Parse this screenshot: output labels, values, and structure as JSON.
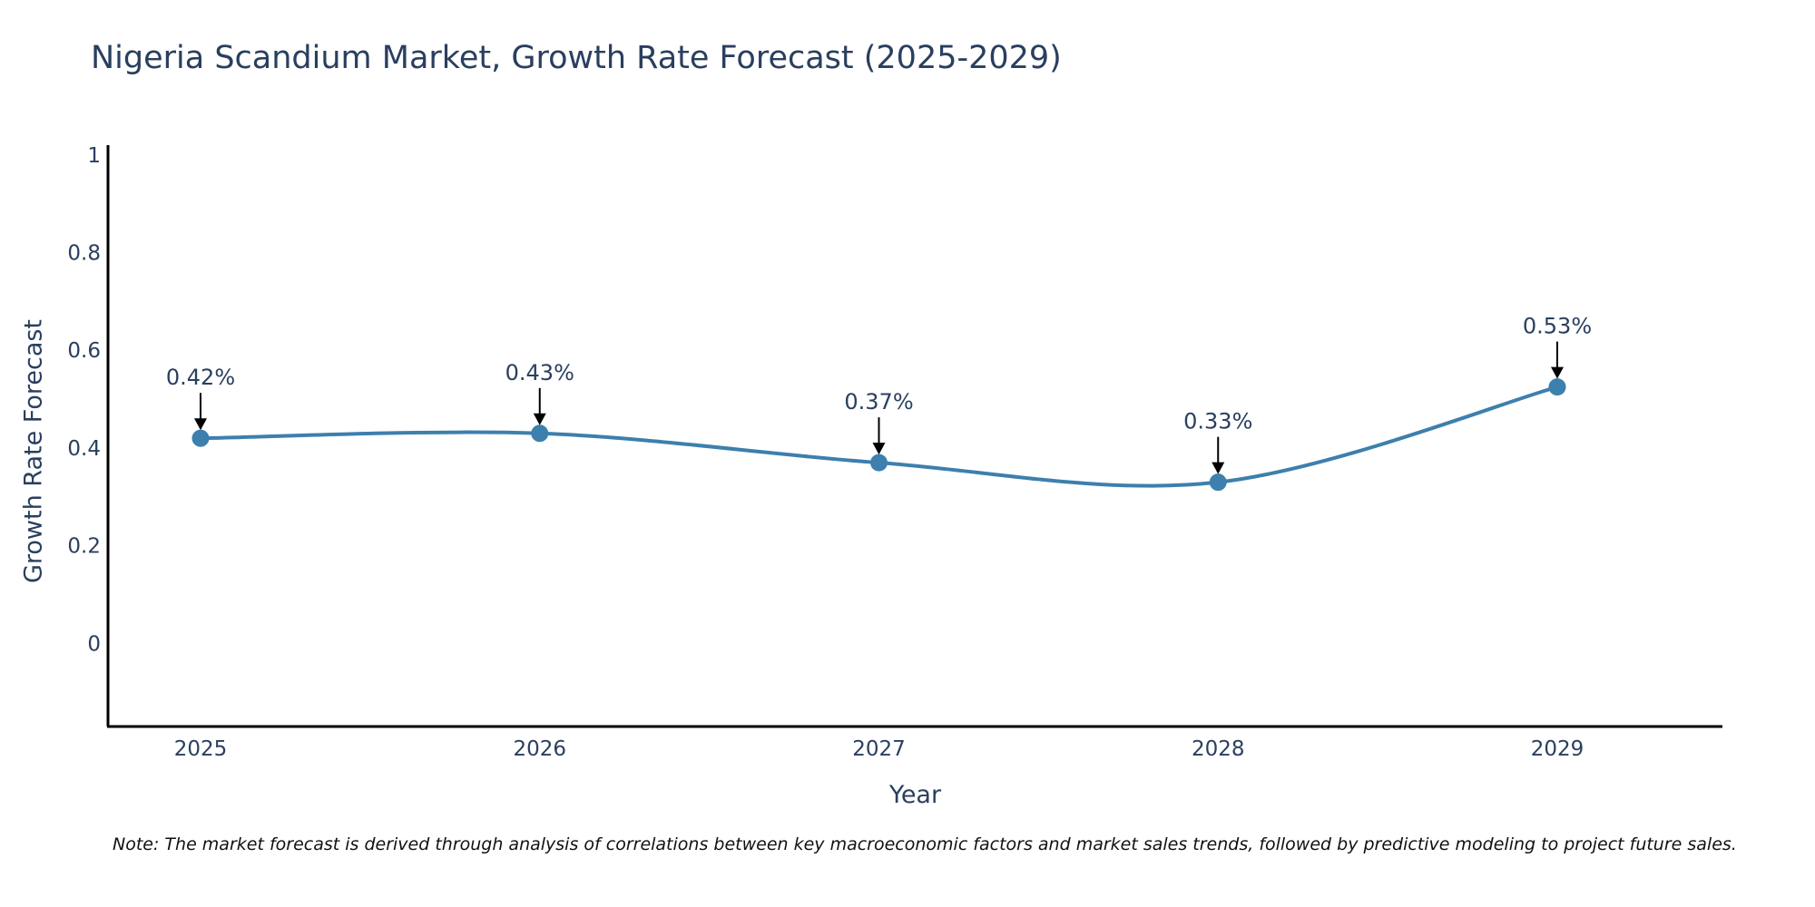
{
  "title": "Nigeria Scandium Market, Growth Rate Forecast (2025-2029)",
  "note": "Note: The market forecast is derived through analysis of correlations between key macroeconomic factors and market sales trends, followed by predictive modeling to project future sales.",
  "colors": {
    "line": "#3d7fad",
    "marker": "#3d7fad",
    "axis": "#000000",
    "text": "#2a3f5f"
  },
  "chart_data": {
    "type": "line",
    "title": "Nigeria Scandium Market, Growth Rate Forecast (2025-2029)",
    "xlabel": "Year",
    "ylabel": "Growth Rate Forecast",
    "categories": [
      "2025",
      "2026",
      "2027",
      "2028",
      "2029"
    ],
    "values": [
      0.42,
      0.43,
      0.37,
      0.33,
      0.525
    ],
    "labels": [
      "0.42%",
      "0.43%",
      "0.37%",
      "0.33%",
      "0.53%"
    ],
    "ylim": [
      -0.17,
      1.02
    ],
    "yticks": [
      0,
      0.2,
      0.4,
      0.6,
      0.8,
      1
    ],
    "ytick_labels": [
      "0",
      "0.2",
      "0.4",
      "0.6",
      "0.8",
      "1"
    ],
    "grid": false,
    "line_shape": "spline"
  }
}
